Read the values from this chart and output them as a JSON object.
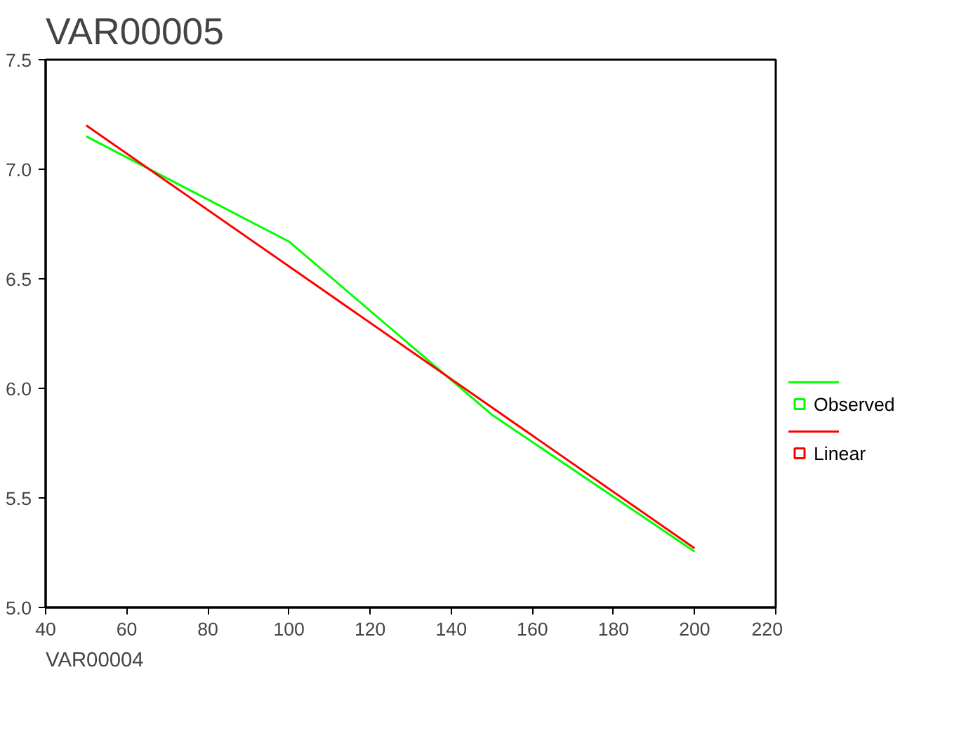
{
  "chart_data": {
    "type": "line",
    "title": "VAR00005",
    "xlabel": "VAR00004",
    "series": [
      {
        "name": "Observed",
        "color": "#00ff00",
        "x": [
          50,
          100,
          150,
          200
        ],
        "values": [
          7.15,
          6.67,
          5.88,
          5.255
        ]
      },
      {
        "name": "Linear",
        "color": "#ff0000",
        "x": [
          50,
          200
        ],
        "values": [
          7.2,
          5.27
        ]
      }
    ],
    "xlim": [
      40,
      220
    ],
    "xticks": [
      40,
      60,
      80,
      100,
      120,
      140,
      160,
      180,
      200,
      220
    ],
    "ylim": [
      5.0,
      7.5
    ],
    "yticks": [
      {
        "value": 5.0,
        "label": "5.0"
      },
      {
        "value": 5.5,
        "label": "5.5"
      },
      {
        "value": 6.0,
        "label": "6.0"
      },
      {
        "value": 6.5,
        "label": "6.5"
      },
      {
        "value": 7.0,
        "label": "7.0"
      },
      {
        "value": 7.5,
        "label": "7.5"
      }
    ],
    "grid": false,
    "legend": "right",
    "line_style": "solid"
  }
}
